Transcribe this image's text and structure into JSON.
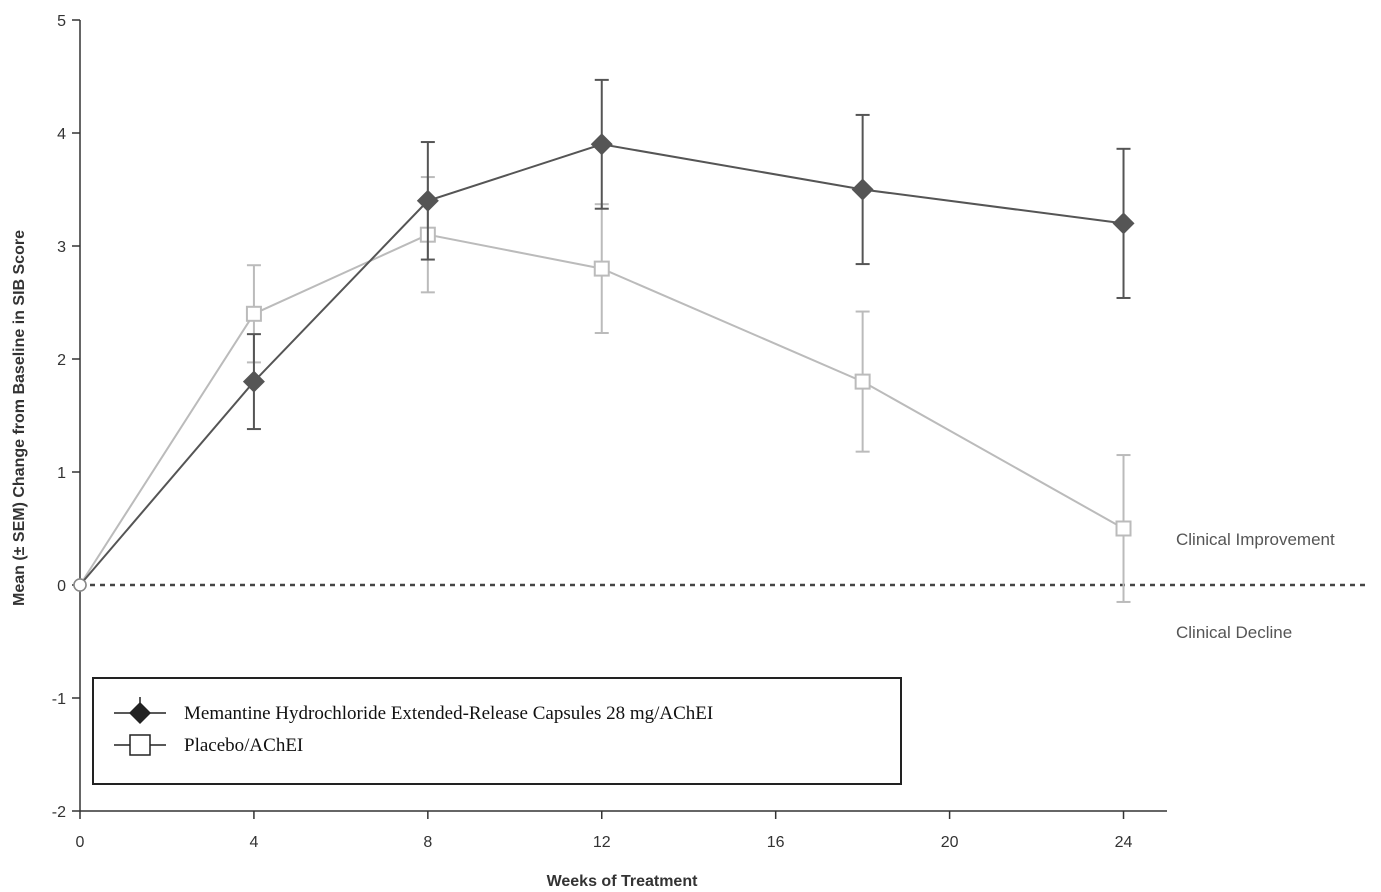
{
  "chart_data": {
    "type": "line",
    "title": "",
    "xlabel": "Weeks of Treatment",
    "ylabel": "Mean (± SEM) Change from Baseline in SIB Score",
    "xlim": [
      0,
      25
    ],
    "ylim": [
      -2,
      5
    ],
    "xticks": [
      0,
      4,
      8,
      12,
      16,
      20,
      24
    ],
    "yticks": [
      -2,
      -1,
      0,
      1,
      2,
      3,
      4,
      5
    ],
    "grid": false,
    "legend_position": "bottom-left",
    "reference_line": {
      "y": 0,
      "style": "dashed"
    },
    "annotations": [
      {
        "text": "Clinical Improvement",
        "position": "right-above-zero"
      },
      {
        "text": "Clinical Decline",
        "position": "right-below-zero"
      }
    ],
    "series": [
      {
        "name": "Memantine Hydrochloride Extended-Release Capsules 28 mg/AChEI",
        "marker": "filled-diamond",
        "color": "#555555",
        "x": [
          0,
          4,
          8,
          12,
          18,
          24
        ],
        "y": [
          0,
          1.8,
          3.4,
          3.9,
          3.5,
          3.2
        ],
        "error": [
          0,
          0.42,
          0.52,
          0.57,
          0.66,
          0.66
        ]
      },
      {
        "name": "Placebo/AChEI",
        "marker": "open-square",
        "color": "#bbbbbb",
        "x": [
          0,
          4,
          8,
          12,
          18,
          24
        ],
        "y": [
          0,
          2.4,
          3.1,
          2.8,
          1.8,
          0.5
        ],
        "error": [
          0,
          0.43,
          0.51,
          0.57,
          0.62,
          0.65
        ]
      }
    ]
  }
}
